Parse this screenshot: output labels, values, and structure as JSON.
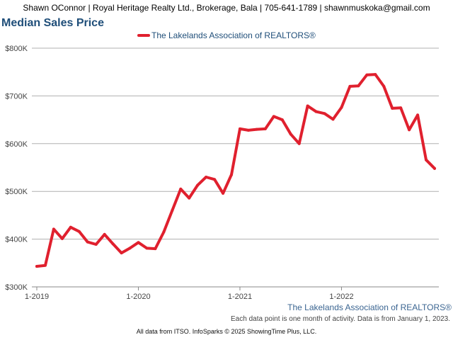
{
  "header": {
    "contact_line": "Shawn OConnor | Royal Heritage Realty Ltd., Brokerage, Bala | 705-641-1789 | shawnmuskoka@gmail.com"
  },
  "footer": {
    "source": "The Lakelands Association of REALTORS®",
    "note": "Each data point is one month of activity. Data is from January 1, 2023.",
    "credit": "All data from ITSO. InfoSparks © 2025 ShowingTime Plus, LLC."
  },
  "colors": {
    "series": "#e0202e",
    "title": "#1f4e79",
    "grid": "#b0b0b0",
    "axis_text": "#444444"
  },
  "chart_data": {
    "type": "line",
    "title": "Median Sales Price",
    "legend_position": "top-center",
    "grid": true,
    "ylim": [
      300000,
      800000
    ],
    "y_ticks": [
      300000,
      400000,
      500000,
      600000,
      700000,
      800000
    ],
    "y_tick_labels": [
      "$300K",
      "$400K",
      "$500K",
      "$600K",
      "$700K",
      "$800K"
    ],
    "x_ticks": [
      0,
      12,
      24,
      36
    ],
    "x_tick_labels": [
      "1-2019",
      "1-2020",
      "1-2021",
      "1-2022"
    ],
    "x_categories": [
      "1-2019",
      "2-2019",
      "3-2019",
      "4-2019",
      "5-2019",
      "6-2019",
      "7-2019",
      "8-2019",
      "9-2019",
      "10-2019",
      "11-2019",
      "12-2019",
      "1-2020",
      "2-2020",
      "3-2020",
      "4-2020",
      "5-2020",
      "6-2020",
      "7-2020",
      "8-2020",
      "9-2020",
      "10-2020",
      "11-2020",
      "12-2020",
      "1-2021",
      "2-2021",
      "3-2021",
      "4-2021",
      "5-2021",
      "6-2021",
      "7-2021",
      "8-2021",
      "9-2021",
      "10-2021",
      "11-2021",
      "12-2021",
      "1-2022",
      "2-2022",
      "3-2022",
      "4-2022",
      "5-2022",
      "6-2022",
      "7-2022",
      "8-2022",
      "9-2022",
      "10-2022",
      "11-2022",
      "12-2022"
    ],
    "series": [
      {
        "name": "The Lakelands Association of REALTORS®",
        "color": "#e0202e",
        "values": [
          343000,
          345000,
          421000,
          401000,
          425000,
          416000,
          394000,
          389000,
          410000,
          390000,
          371000,
          381000,
          393000,
          381000,
          380000,
          415000,
          460000,
          505000,
          486000,
          513000,
          530000,
          525000,
          496000,
          535000,
          631000,
          628000,
          630000,
          631000,
          657000,
          650000,
          620000,
          600000,
          679000,
          667000,
          663000,
          651000,
          676000,
          720000,
          721000,
          744000,
          745000,
          720000,
          674000,
          675000,
          629000,
          660000,
          566000,
          548000
        ]
      }
    ]
  }
}
